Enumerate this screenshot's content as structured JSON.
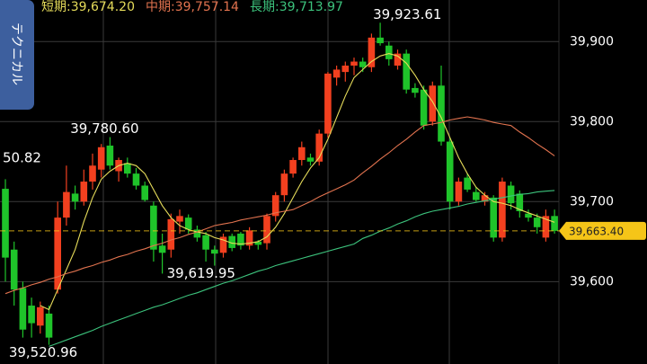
{
  "sidebar_button": {
    "label": "テクニカル"
  },
  "chart_data": {
    "type": "candlestick",
    "up_color": "#f2401f",
    "down_color": "#1fc42a",
    "candles": [
      {
        "o": 39716,
        "h": 39728,
        "l": 39600,
        "c": 39630
      },
      {
        "o": 39640,
        "h": 39650,
        "l": 39570,
        "c": 39590
      },
      {
        "o": 39592,
        "h": 39600,
        "l": 39530,
        "c": 39540
      },
      {
        "o": 39570,
        "h": 39580,
        "l": 39530,
        "c": 39548
      },
      {
        "o": 39545,
        "h": 39575,
        "l": 39535,
        "c": 39568
      },
      {
        "o": 39560,
        "h": 39570,
        "l": 39520.96,
        "c": 39530
      },
      {
        "o": 39590,
        "h": 39700,
        "l": 39585,
        "c": 39680
      },
      {
        "o": 39680,
        "h": 39745,
        "l": 39670,
        "c": 39712
      },
      {
        "o": 39710,
        "h": 39720,
        "l": 39690,
        "c": 39700
      },
      {
        "o": 39700,
        "h": 39740,
        "l": 39695,
        "c": 39725
      },
      {
        "o": 39725,
        "h": 39760,
        "l": 39715,
        "c": 39745
      },
      {
        "o": 39740,
        "h": 39772,
        "l": 39730,
        "c": 39768
      },
      {
        "o": 39770,
        "h": 39780.6,
        "l": 39740,
        "c": 39745
      },
      {
        "o": 39738,
        "h": 39755,
        "l": 39725,
        "c": 39752
      },
      {
        "o": 39748,
        "h": 39755,
        "l": 39730,
        "c": 39735
      },
      {
        "o": 39735,
        "h": 39742,
        "l": 39715,
        "c": 39720
      },
      {
        "o": 39720,
        "h": 39725,
        "l": 39700,
        "c": 39702
      },
      {
        "o": 39695,
        "h": 39700,
        "l": 39625,
        "c": 39640
      },
      {
        "o": 39645,
        "h": 39660,
        "l": 39610,
        "c": 39636
      },
      {
        "o": 39640,
        "h": 39685,
        "l": 39630,
        "c": 39678
      },
      {
        "o": 39675,
        "h": 39690,
        "l": 39660,
        "c": 39682
      },
      {
        "o": 39680,
        "h": 39684,
        "l": 39660,
        "c": 39665
      },
      {
        "o": 39665,
        "h": 39670,
        "l": 39650,
        "c": 39655
      },
      {
        "o": 39658,
        "h": 39662,
        "l": 39625,
        "c": 39640
      },
      {
        "o": 39640,
        "h": 39645,
        "l": 39619.95,
        "c": 39635
      },
      {
        "o": 39636,
        "h": 39660,
        "l": 39630,
        "c": 39656
      },
      {
        "o": 39657,
        "h": 39660,
        "l": 39638,
        "c": 39642
      },
      {
        "o": 39660,
        "h": 39662,
        "l": 39640,
        "c": 39645
      },
      {
        "o": 39645,
        "h": 39668,
        "l": 39640,
        "c": 39664
      },
      {
        "o": 39650,
        "h": 39652,
        "l": 39640,
        "c": 39646
      },
      {
        "o": 39648,
        "h": 39685,
        "l": 39640,
        "c": 39682
      },
      {
        "o": 39682,
        "h": 39712,
        "l": 39675,
        "c": 39708
      },
      {
        "o": 39708,
        "h": 39740,
        "l": 39700,
        "c": 39735
      },
      {
        "o": 39735,
        "h": 39755,
        "l": 39730,
        "c": 39752
      },
      {
        "o": 39752,
        "h": 39775,
        "l": 39745,
        "c": 39768
      },
      {
        "o": 39755,
        "h": 39760,
        "l": 39745,
        "c": 39750
      },
      {
        "o": 39750,
        "h": 39790,
        "l": 39745,
        "c": 39785
      },
      {
        "o": 39785,
        "h": 39862,
        "l": 39780,
        "c": 39860
      },
      {
        "o": 39855,
        "h": 39870,
        "l": 39845,
        "c": 39865
      },
      {
        "o": 39862,
        "h": 39875,
        "l": 39850,
        "c": 39870
      },
      {
        "o": 39870,
        "h": 39880,
        "l": 39858,
        "c": 39875
      },
      {
        "o": 39875,
        "h": 39880,
        "l": 39862,
        "c": 39868
      },
      {
        "o": 39868,
        "h": 39910,
        "l": 39862,
        "c": 39905
      },
      {
        "o": 39905,
        "h": 39923.61,
        "l": 39895,
        "c": 39898
      },
      {
        "o": 39895,
        "h": 39900,
        "l": 39870,
        "c": 39878
      },
      {
        "o": 39870,
        "h": 39890,
        "l": 39865,
        "c": 39885
      },
      {
        "o": 39885,
        "h": 39890,
        "l": 39835,
        "c": 39840
      },
      {
        "o": 39842,
        "h": 39848,
        "l": 39830,
        "c": 39836
      },
      {
        "o": 39840,
        "h": 39845,
        "l": 39790,
        "c": 39795
      },
      {
        "o": 39800,
        "h": 39850,
        "l": 39795,
        "c": 39845
      },
      {
        "o": 39845,
        "h": 39870,
        "l": 39770,
        "c": 39775
      },
      {
        "o": 39775,
        "h": 39780,
        "l": 39690,
        "c": 39700
      },
      {
        "o": 39700,
        "h": 39730,
        "l": 39695,
        "c": 39725
      },
      {
        "o": 39730,
        "h": 39735,
        "l": 39712,
        "c": 39715
      },
      {
        "o": 39712,
        "h": 39718,
        "l": 39700,
        "c": 39702
      },
      {
        "o": 39700,
        "h": 39712,
        "l": 39695,
        "c": 39708
      },
      {
        "o": 39705,
        "h": 39708,
        "l": 39650,
        "c": 39655
      },
      {
        "o": 39655,
        "h": 39730,
        "l": 39650,
        "c": 39725
      },
      {
        "o": 39720,
        "h": 39725,
        "l": 39690,
        "c": 39698
      },
      {
        "o": 39710,
        "h": 39714,
        "l": 39680,
        "c": 39688
      },
      {
        "o": 39685,
        "h": 39690,
        "l": 39675,
        "c": 39680
      },
      {
        "o": 39680,
        "h": 39685,
        "l": 39660,
        "c": 39668
      },
      {
        "o": 39655,
        "h": 39690,
        "l": 39650,
        "c": 39682
      },
      {
        "o": 39682,
        "h": 39690,
        "l": 39660,
        "c": 39663.4
      }
    ],
    "legend_separator": ":",
    "series": [
      {
        "name": "短期",
        "color": "#e6dc5a",
        "legend_value": {
          "value": 39674.2,
          "label": "39,674.20"
        },
        "values": [
          null,
          null,
          null,
          null,
          39570,
          39565,
          39590,
          39615,
          39640,
          39675,
          39705,
          39728,
          39738,
          39745,
          39748,
          39745,
          39735,
          39715,
          39695,
          39680,
          39670,
          39665,
          39662,
          39660,
          39655,
          39652,
          39648,
          39647,
          39648,
          39650,
          39656,
          39668,
          39685,
          39705,
          39725,
          39742,
          39755,
          39778,
          39805,
          39832,
          39855,
          39865,
          39875,
          39882,
          39885,
          39882,
          39873,
          39858,
          39840,
          39825,
          39805,
          39780,
          39755,
          39735,
          39718,
          39708,
          39700,
          39698,
          39695,
          39690,
          39686,
          39682,
          39678,
          39674.2
        ]
      },
      {
        "name": "中期",
        "color": "#e2734f",
        "legend_value": {
          "value": 39757.14,
          "label": "39,757.14"
        },
        "values": [
          39585,
          39589,
          39592,
          39596,
          39599,
          39603,
          39606,
          39610,
          39613,
          39617,
          39620,
          39624,
          39627,
          39631,
          39634,
          39638,
          39641,
          39645,
          39648,
          39652,
          39655,
          39659,
          39662,
          39666,
          39670,
          39672,
          39674,
          39677,
          39679,
          39681,
          39683,
          39686,
          39688,
          39690,
          39695,
          39700,
          39706,
          39711,
          39716,
          39721,
          39727,
          39736,
          39744,
          39753,
          39761,
          39770,
          39778,
          39787,
          39795,
          39797,
          39799,
          39802,
          39804,
          39806,
          39804,
          39802,
          39799,
          39797,
          39795,
          39787,
          39780,
          39772,
          39765,
          39757.14
        ]
      },
      {
        "name": "長期",
        "color": "#3cc27c",
        "legend_value": {
          "value": 39713.97,
          "label": "39,713.97"
        },
        "values": [
          null,
          null,
          null,
          null,
          null,
          39519,
          39523,
          39527,
          39531,
          39535,
          39539,
          39544,
          39548,
          39552,
          39556,
          39560,
          39564,
          39568,
          39571,
          39575,
          39579,
          39583,
          39586,
          39590,
          39594,
          39598,
          39601,
          39605,
          39609,
          39613,
          39616,
          39620,
          39623,
          39626,
          39629,
          39632,
          39635,
          39638,
          39641,
          39644,
          39647,
          39654,
          39658,
          39663,
          39667,
          39672,
          39676,
          39681,
          39685,
          39688,
          39690,
          39692,
          39694,
          39697,
          39699,
          39701,
          39703,
          39705,
          39707,
          39709,
          39710,
          39712,
          39713,
          39713.97
        ]
      }
    ],
    "annotations": [
      {
        "value": 39923.61,
        "label": "39,923.61"
      },
      {
        "value": 39780.6,
        "label": "39,780.60"
      },
      {
        "value": 39619.95,
        "label": "39,619.95"
      },
      {
        "value": 39520.96,
        "label": "39,520.96"
      }
    ],
    "offscreen_label": "50.82",
    "current_price": {
      "value": 39663.4,
      "label": "39,663.40",
      "color": "#f5c518"
    },
    "ylim": [
      39497,
      39952
    ],
    "yticks": [
      {
        "value": 39600,
        "label": "39,600"
      },
      {
        "value": 39700,
        "label": "39,700"
      },
      {
        "value": 39800,
        "label": "39,800"
      },
      {
        "value": 39900,
        "label": "39,900"
      }
    ],
    "grid": true
  }
}
